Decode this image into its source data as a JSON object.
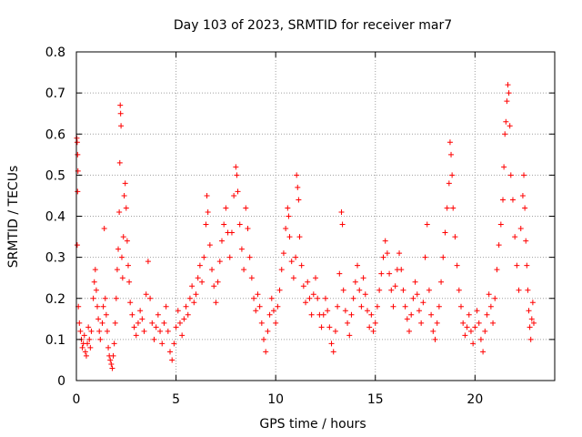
{
  "chart_data": {
    "type": "scatter",
    "title": "Day 103 of 2023, SRMTID for receiver mar7",
    "xlabel": "GPS time / hours",
    "ylabel": "SRMTID / TECUs",
    "xlim": [
      0,
      24
    ],
    "ylim": [
      0,
      0.8
    ],
    "xticks": [
      0,
      5,
      10,
      15,
      20
    ],
    "xtick_labels": [
      "0",
      "5",
      "10",
      "15",
      "20"
    ],
    "yticks": [
      0,
      0.1,
      0.2,
      0.3,
      0.4,
      0.5,
      0.6,
      0.7,
      0.8
    ],
    "ytick_labels": [
      "0",
      "0.1",
      "0.2",
      "0.3",
      "0.4",
      "0.5",
      "0.6",
      "0.7",
      "0.8"
    ],
    "grid": true,
    "marker": "+",
    "color": "#ff0000",
    "series": [
      {
        "name": "SRMTID",
        "points": [
          [
            0.02,
            0.59
          ],
          [
            0.04,
            0.58
          ],
          [
            0.06,
            0.55
          ],
          [
            0.08,
            0.51
          ],
          [
            0.06,
            0.46
          ],
          [
            0.04,
            0.33
          ],
          [
            0.1,
            0.18
          ],
          [
            0.15,
            0.14
          ],
          [
            0.2,
            0.12
          ],
          [
            0.25,
            0.1
          ],
          [
            0.3,
            0.08
          ],
          [
            0.35,
            0.09
          ],
          [
            0.4,
            0.11
          ],
          [
            0.45,
            0.07
          ],
          [
            0.5,
            0.06
          ],
          [
            0.55,
            0.09
          ],
          [
            0.6,
            0.13
          ],
          [
            0.65,
            0.1
          ],
          [
            0.7,
            0.08
          ],
          [
            0.75,
            0.12
          ],
          [
            0.85,
            0.2
          ],
          [
            0.9,
            0.24
          ],
          [
            0.95,
            0.27
          ],
          [
            1.0,
            0.22
          ],
          [
            1.05,
            0.18
          ],
          [
            1.1,
            0.15
          ],
          [
            1.15,
            0.12
          ],
          [
            1.2,
            0.1
          ],
          [
            1.3,
            0.14
          ],
          [
            1.35,
            0.18
          ],
          [
            1.4,
            0.37
          ],
          [
            1.45,
            0.2
          ],
          [
            1.5,
            0.16
          ],
          [
            1.55,
            0.12
          ],
          [
            1.6,
            0.08
          ],
          [
            1.65,
            0.06
          ],
          [
            1.7,
            0.05
          ],
          [
            1.75,
            0.04
          ],
          [
            1.8,
            0.03
          ],
          [
            1.85,
            0.06
          ],
          [
            1.9,
            0.09
          ],
          [
            1.95,
            0.14
          ],
          [
            2.0,
            0.2
          ],
          [
            2.05,
            0.27
          ],
          [
            2.1,
            0.32
          ],
          [
            2.15,
            0.41
          ],
          [
            2.18,
            0.53
          ],
          [
            2.2,
            0.67
          ],
          [
            2.22,
            0.65
          ],
          [
            2.24,
            0.62
          ],
          [
            2.28,
            0.3
          ],
          [
            2.32,
            0.25
          ],
          [
            2.36,
            0.35
          ],
          [
            2.4,
            0.45
          ],
          [
            2.45,
            0.48
          ],
          [
            2.5,
            0.42
          ],
          [
            2.55,
            0.34
          ],
          [
            2.6,
            0.28
          ],
          [
            2.65,
            0.24
          ],
          [
            2.7,
            0.19
          ],
          [
            2.8,
            0.16
          ],
          [
            2.9,
            0.13
          ],
          [
            3.0,
            0.11
          ],
          [
            3.1,
            0.14
          ],
          [
            3.2,
            0.17
          ],
          [
            3.3,
            0.15
          ],
          [
            3.4,
            0.12
          ],
          [
            3.5,
            0.21
          ],
          [
            3.6,
            0.29
          ],
          [
            3.7,
            0.2
          ],
          [
            3.8,
            0.14
          ],
          [
            3.9,
            0.1
          ],
          [
            4.0,
            0.13
          ],
          [
            4.1,
            0.16
          ],
          [
            4.2,
            0.12
          ],
          [
            4.3,
            0.09
          ],
          [
            4.4,
            0.14
          ],
          [
            4.5,
            0.18
          ],
          [
            4.6,
            0.12
          ],
          [
            4.7,
            0.07
          ],
          [
            4.8,
            0.05
          ],
          [
            4.9,
            0.09
          ],
          [
            5.0,
            0.13
          ],
          [
            5.1,
            0.17
          ],
          [
            5.2,
            0.14
          ],
          [
            5.3,
            0.11
          ],
          [
            5.4,
            0.15
          ],
          [
            5.5,
            0.18
          ],
          [
            5.6,
            0.16
          ],
          [
            5.7,
            0.2
          ],
          [
            5.8,
            0.23
          ],
          [
            5.9,
            0.19
          ],
          [
            6.0,
            0.21
          ],
          [
            6.1,
            0.25
          ],
          [
            6.2,
            0.28
          ],
          [
            6.3,
            0.24
          ],
          [
            6.4,
            0.3
          ],
          [
            6.5,
            0.38
          ],
          [
            6.55,
            0.45
          ],
          [
            6.6,
            0.41
          ],
          [
            6.7,
            0.33
          ],
          [
            6.8,
            0.27
          ],
          [
            6.9,
            0.23
          ],
          [
            7.0,
            0.19
          ],
          [
            7.1,
            0.24
          ],
          [
            7.2,
            0.29
          ],
          [
            7.3,
            0.34
          ],
          [
            7.4,
            0.38
          ],
          [
            7.5,
            0.42
          ],
          [
            7.6,
            0.36
          ],
          [
            7.7,
            0.3
          ],
          [
            7.8,
            0.36
          ],
          [
            7.9,
            0.45
          ],
          [
            8.0,
            0.52
          ],
          [
            8.05,
            0.5
          ],
          [
            8.1,
            0.46
          ],
          [
            8.2,
            0.38
          ],
          [
            8.3,
            0.32
          ],
          [
            8.4,
            0.27
          ],
          [
            8.5,
            0.42
          ],
          [
            8.6,
            0.37
          ],
          [
            8.7,
            0.3
          ],
          [
            8.8,
            0.25
          ],
          [
            8.9,
            0.2
          ],
          [
            9.0,
            0.17
          ],
          [
            9.1,
            0.21
          ],
          [
            9.2,
            0.18
          ],
          [
            9.3,
            0.14
          ],
          [
            9.4,
            0.1
          ],
          [
            9.5,
            0.07
          ],
          [
            9.6,
            0.12
          ],
          [
            9.7,
            0.16
          ],
          [
            9.8,
            0.2
          ],
          [
            9.9,
            0.17
          ],
          [
            10.0,
            0.14
          ],
          [
            10.1,
            0.18
          ],
          [
            10.2,
            0.22
          ],
          [
            10.3,
            0.27
          ],
          [
            10.4,
            0.31
          ],
          [
            10.5,
            0.37
          ],
          [
            10.6,
            0.42
          ],
          [
            10.65,
            0.4
          ],
          [
            10.7,
            0.35
          ],
          [
            10.8,
            0.29
          ],
          [
            10.9,
            0.25
          ],
          [
            11.0,
            0.3
          ],
          [
            11.05,
            0.5
          ],
          [
            11.1,
            0.47
          ],
          [
            11.15,
            0.44
          ],
          [
            11.2,
            0.35
          ],
          [
            11.3,
            0.28
          ],
          [
            11.4,
            0.23
          ],
          [
            11.5,
            0.19
          ],
          [
            11.6,
            0.24
          ],
          [
            11.7,
            0.2
          ],
          [
            11.8,
            0.16
          ],
          [
            11.9,
            0.21
          ],
          [
            12.0,
            0.25
          ],
          [
            12.1,
            0.2
          ],
          [
            12.2,
            0.16
          ],
          [
            12.3,
            0.13
          ],
          [
            12.4,
            0.16
          ],
          [
            12.5,
            0.2
          ],
          [
            12.6,
            0.17
          ],
          [
            12.7,
            0.13
          ],
          [
            12.8,
            0.09
          ],
          [
            12.9,
            0.07
          ],
          [
            13.0,
            0.12
          ],
          [
            13.1,
            0.18
          ],
          [
            13.2,
            0.26
          ],
          [
            13.3,
            0.41
          ],
          [
            13.35,
            0.38
          ],
          [
            13.4,
            0.22
          ],
          [
            13.5,
            0.17
          ],
          [
            13.6,
            0.14
          ],
          [
            13.7,
            0.11
          ],
          [
            13.8,
            0.16
          ],
          [
            13.9,
            0.2
          ],
          [
            14.0,
            0.24
          ],
          [
            14.1,
            0.28
          ],
          [
            14.2,
            0.22
          ],
          [
            14.3,
            0.18
          ],
          [
            14.4,
            0.25
          ],
          [
            14.5,
            0.21
          ],
          [
            14.6,
            0.17
          ],
          [
            14.7,
            0.13
          ],
          [
            14.8,
            0.16
          ],
          [
            14.9,
            0.12
          ],
          [
            15.0,
            0.14
          ],
          [
            15.1,
            0.18
          ],
          [
            15.2,
            0.22
          ],
          [
            15.3,
            0.26
          ],
          [
            15.4,
            0.3
          ],
          [
            15.5,
            0.34
          ],
          [
            15.6,
            0.31
          ],
          [
            15.7,
            0.26
          ],
          [
            15.8,
            0.22
          ],
          [
            15.9,
            0.18
          ],
          [
            16.0,
            0.23
          ],
          [
            16.1,
            0.27
          ],
          [
            16.2,
            0.31
          ],
          [
            16.3,
            0.27
          ],
          [
            16.4,
            0.22
          ],
          [
            16.5,
            0.18
          ],
          [
            16.6,
            0.15
          ],
          [
            16.7,
            0.12
          ],
          [
            16.8,
            0.16
          ],
          [
            16.9,
            0.2
          ],
          [
            17.0,
            0.24
          ],
          [
            17.1,
            0.21
          ],
          [
            17.2,
            0.17
          ],
          [
            17.3,
            0.14
          ],
          [
            17.4,
            0.19
          ],
          [
            17.5,
            0.3
          ],
          [
            17.6,
            0.38
          ],
          [
            17.7,
            0.22
          ],
          [
            17.8,
            0.16
          ],
          [
            17.9,
            0.12
          ],
          [
            18.0,
            0.1
          ],
          [
            18.1,
            0.14
          ],
          [
            18.2,
            0.18
          ],
          [
            18.3,
            0.24
          ],
          [
            18.4,
            0.3
          ],
          [
            18.5,
            0.36
          ],
          [
            18.6,
            0.42
          ],
          [
            18.7,
            0.48
          ],
          [
            18.75,
            0.58
          ],
          [
            18.8,
            0.55
          ],
          [
            18.85,
            0.5
          ],
          [
            18.9,
            0.42
          ],
          [
            19.0,
            0.35
          ],
          [
            19.1,
            0.28
          ],
          [
            19.2,
            0.22
          ],
          [
            19.3,
            0.18
          ],
          [
            19.4,
            0.14
          ],
          [
            19.5,
            0.11
          ],
          [
            19.6,
            0.13
          ],
          [
            19.7,
            0.16
          ],
          [
            19.8,
            0.12
          ],
          [
            19.9,
            0.09
          ],
          [
            20.0,
            0.13
          ],
          [
            20.1,
            0.17
          ],
          [
            20.2,
            0.14
          ],
          [
            20.3,
            0.1
          ],
          [
            20.4,
            0.07
          ],
          [
            20.5,
            0.12
          ],
          [
            20.6,
            0.16
          ],
          [
            20.7,
            0.21
          ],
          [
            20.8,
            0.18
          ],
          [
            20.9,
            0.14
          ],
          [
            21.0,
            0.2
          ],
          [
            21.1,
            0.27
          ],
          [
            21.2,
            0.33
          ],
          [
            21.3,
            0.38
          ],
          [
            21.4,
            0.44
          ],
          [
            21.45,
            0.52
          ],
          [
            21.5,
            0.6
          ],
          [
            21.55,
            0.63
          ],
          [
            21.6,
            0.68
          ],
          [
            21.65,
            0.72
          ],
          [
            21.7,
            0.7
          ],
          [
            21.75,
            0.62
          ],
          [
            21.8,
            0.5
          ],
          [
            21.9,
            0.44
          ],
          [
            22.0,
            0.35
          ],
          [
            22.1,
            0.28
          ],
          [
            22.2,
            0.22
          ],
          [
            22.3,
            0.37
          ],
          [
            22.4,
            0.45
          ],
          [
            22.45,
            0.5
          ],
          [
            22.5,
            0.42
          ],
          [
            22.55,
            0.34
          ],
          [
            22.6,
            0.28
          ],
          [
            22.65,
            0.22
          ],
          [
            22.7,
            0.17
          ],
          [
            22.75,
            0.13
          ],
          [
            22.8,
            0.1
          ],
          [
            22.85,
            0.15
          ],
          [
            22.9,
            0.19
          ],
          [
            22.95,
            0.14
          ]
        ]
      }
    ]
  }
}
